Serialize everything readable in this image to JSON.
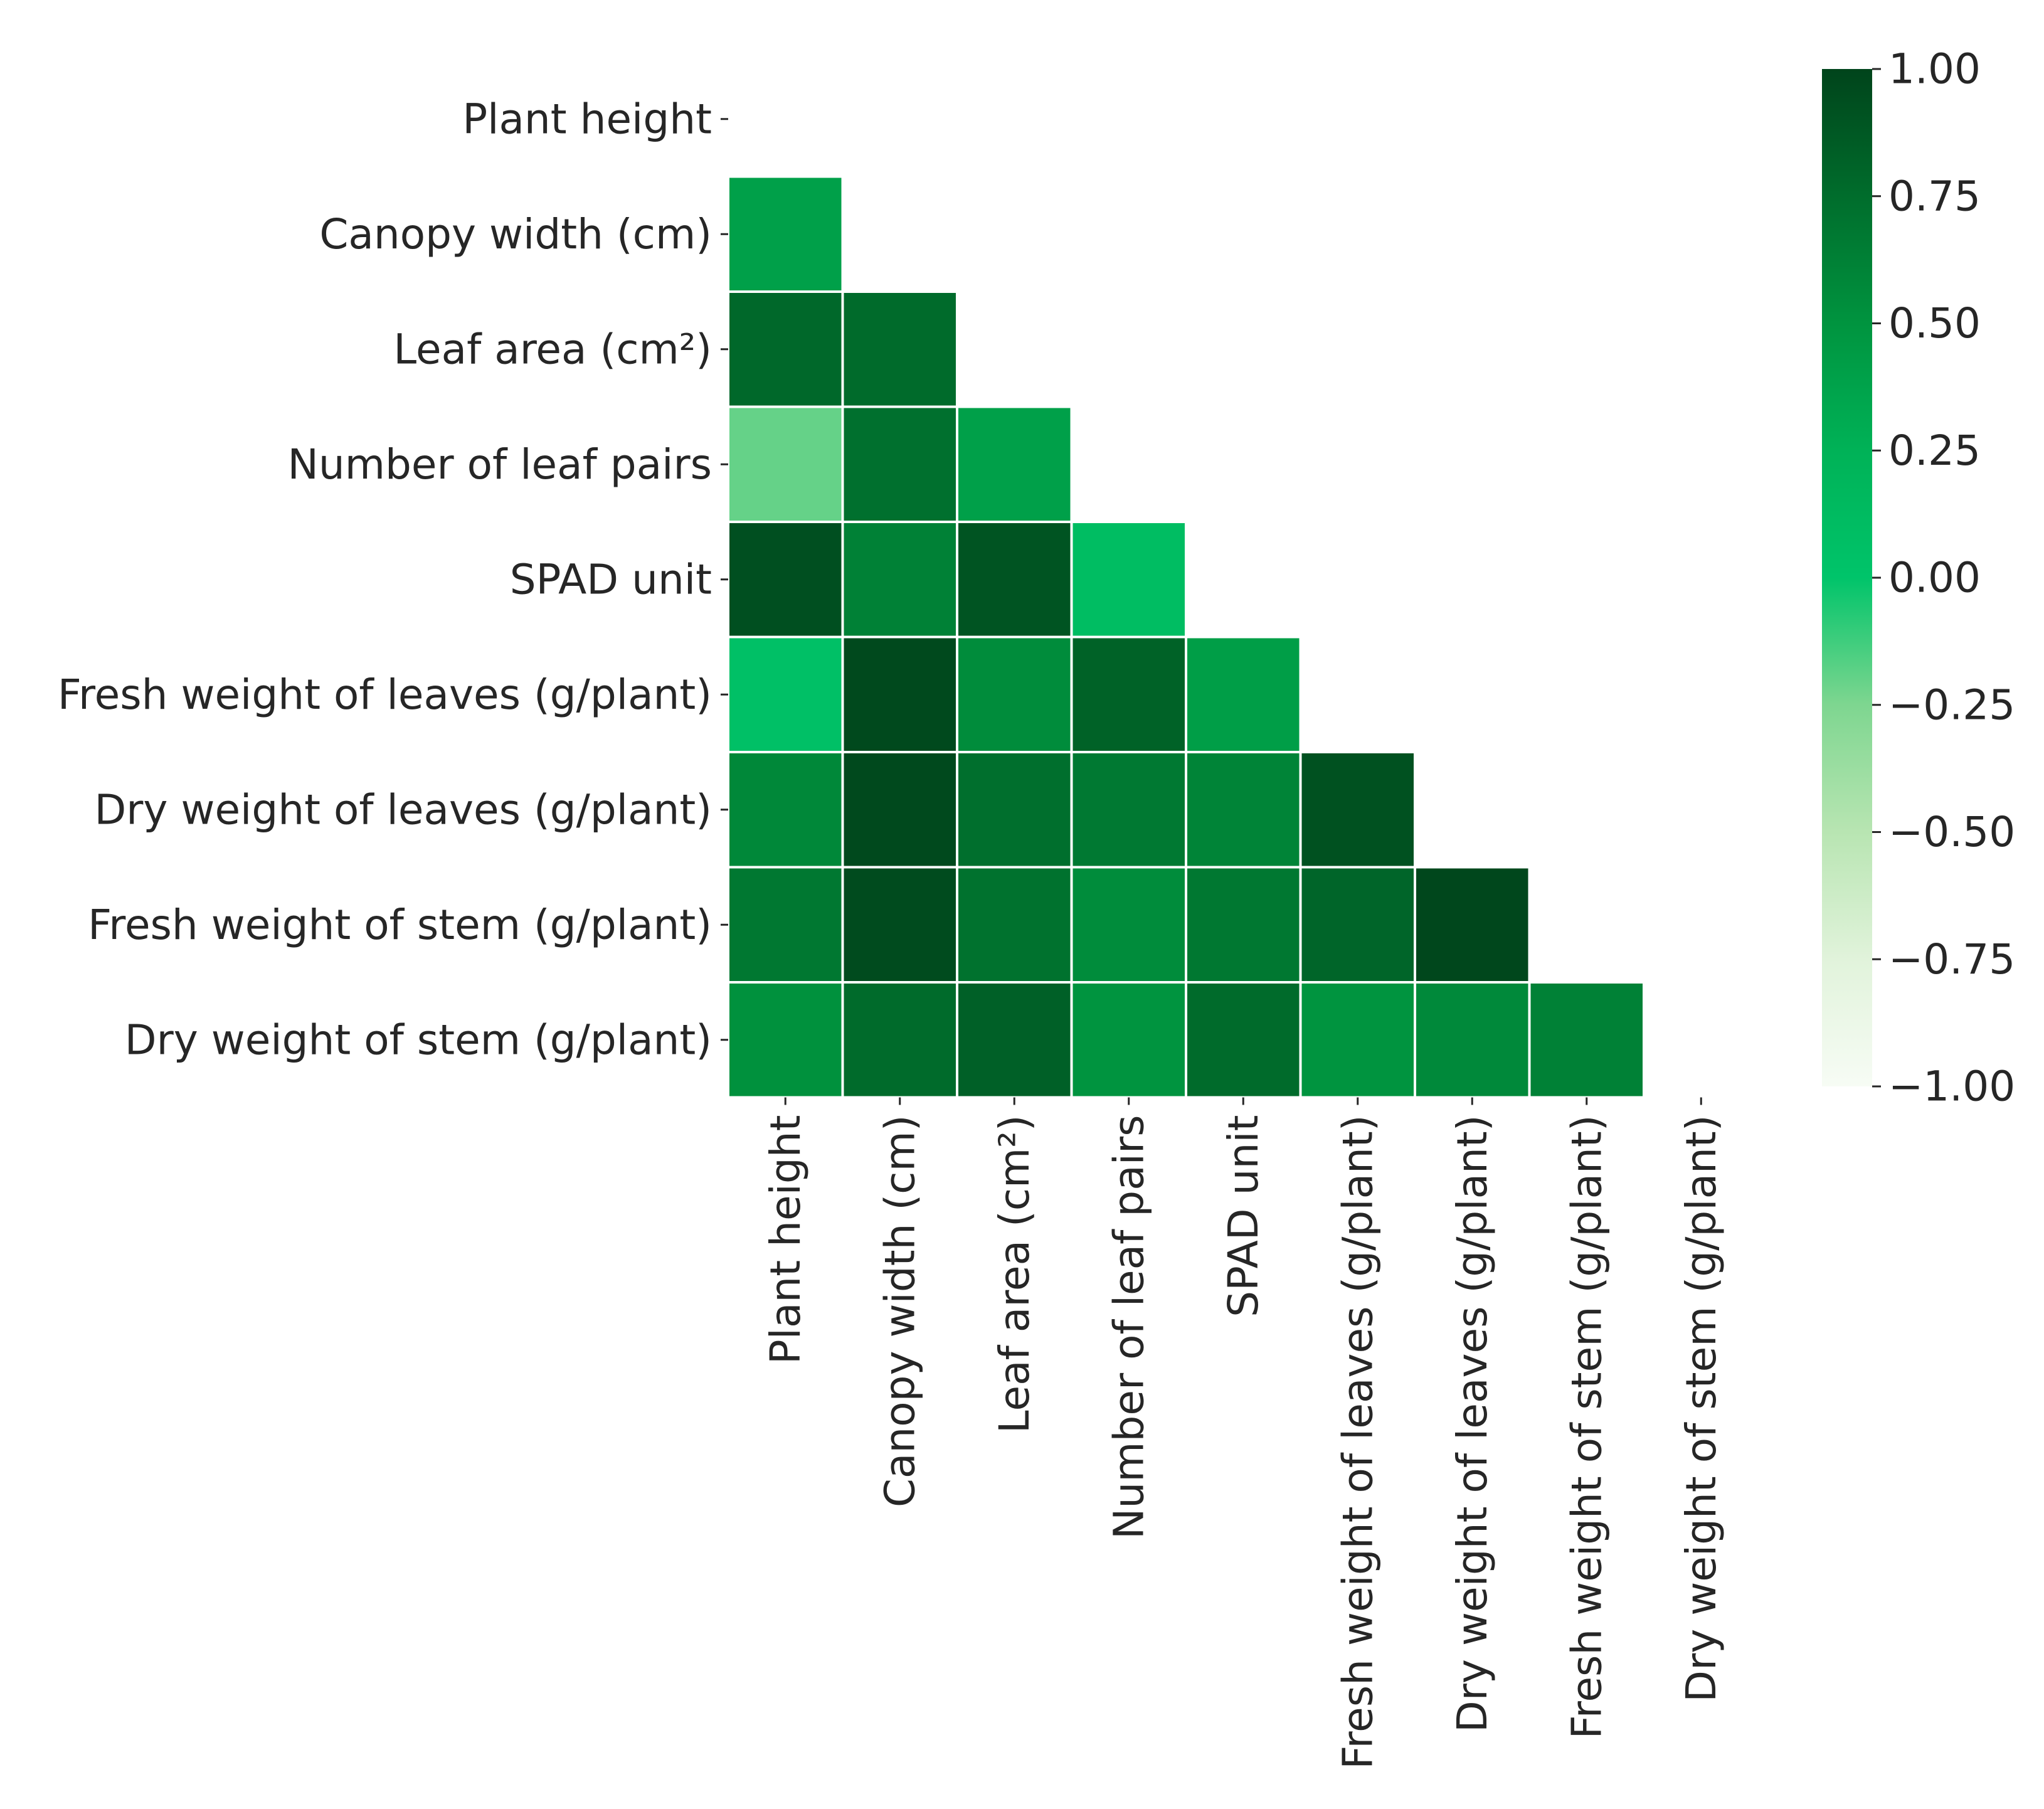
{
  "chart_data": {
    "type": "heatmap",
    "mask": "upper-triangle",
    "colormap": "Greens (diverging center 0)",
    "colors": {
      "high": "#00441b",
      "mid": "#00c46a",
      "low": "#f7fcf5",
      "cell_border": "#ffffff"
    },
    "row_labels": [
      "Plant height",
      "Canopy width (cm)",
      "Leaf area (cm²)",
      "Number of leaf pairs",
      "SPAD unit",
      "Fresh weight of leaves (g/plant)",
      "Dry weight of leaves (g/plant)",
      "Fresh weight of stem (g/plant)",
      "Dry weight of stem (g/plant)"
    ],
    "col_labels": [
      "Plant height",
      "Canopy width (cm)",
      "Leaf area (cm²)",
      "Number of leaf pairs",
      "SPAD unit",
      "Fresh weight of leaves (g/plant)",
      "Dry weight of leaves (g/plant)",
      "Fresh weight of stem (g/plant)",
      "Dry weight of stem (g/plant)"
    ],
    "values": [
      [
        null,
        null,
        null,
        null,
        null,
        null,
        null,
        null,
        null
      ],
      [
        0.4,
        null,
        null,
        null,
        null,
        null,
        null,
        null,
        null
      ],
      [
        0.78,
        0.76,
        null,
        null,
        null,
        null,
        null,
        null,
        null
      ],
      [
        -0.2,
        0.73,
        0.4,
        null,
        null,
        null,
        null,
        null,
        null
      ],
      [
        0.93,
        0.62,
        0.9,
        0.1,
        null,
        null,
        null,
        null,
        null
      ],
      [
        0.05,
        0.97,
        0.55,
        0.82,
        0.42,
        null,
        null,
        null,
        null
      ],
      [
        0.58,
        0.97,
        0.74,
        0.67,
        0.6,
        0.92,
        null,
        null,
        null
      ],
      [
        0.68,
        0.96,
        0.72,
        0.55,
        0.68,
        0.8,
        0.98,
        null,
        null
      ],
      [
        0.52,
        0.76,
        0.83,
        0.5,
        0.76,
        0.5,
        0.57,
        0.62,
        null
      ]
    ],
    "vmin": -1.0,
    "vmax": 1.0,
    "colorbar": {
      "ticks": [
        1.0,
        0.75,
        0.5,
        0.25,
        0.0,
        -0.25,
        -0.5,
        -0.75,
        -1.0
      ],
      "tick_labels": [
        "1.00",
        "0.75",
        "0.50",
        "0.25",
        "0.00",
        "−0.25",
        "−0.50",
        "−0.75",
        "−1.00"
      ]
    }
  }
}
